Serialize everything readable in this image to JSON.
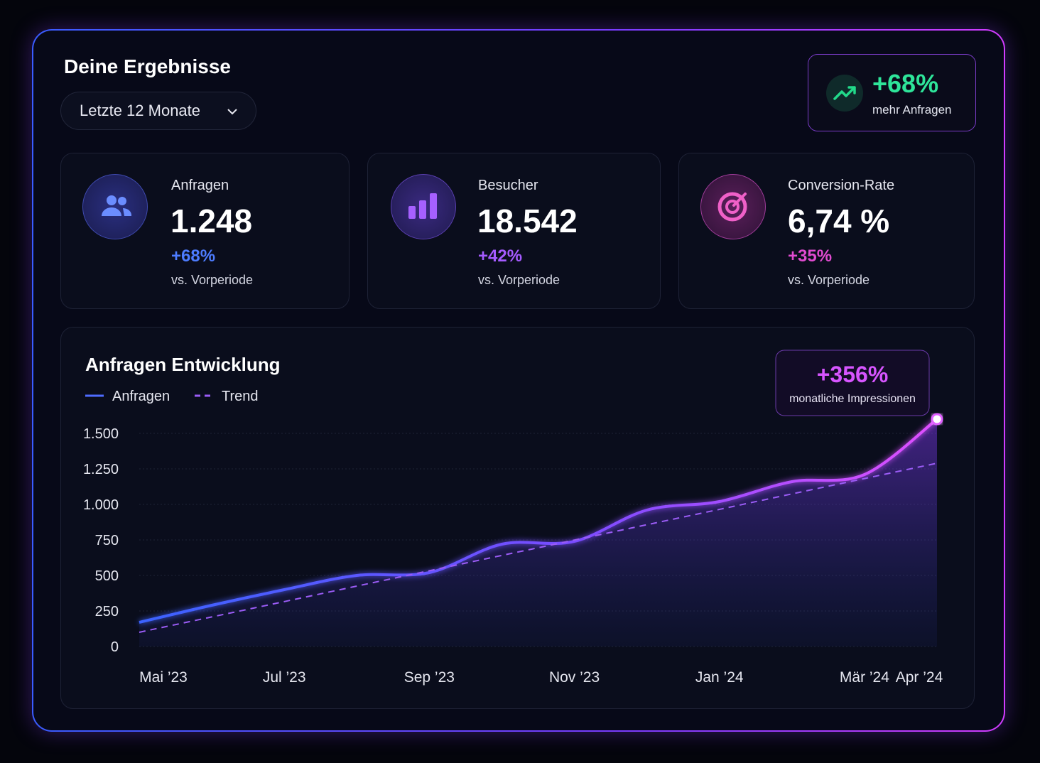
{
  "header": {
    "title": "Deine Ergebnisse",
    "period": "Letzte 12 Monate"
  },
  "highlight": {
    "value": "+68%",
    "label": "mehr Anfragen"
  },
  "kpis": [
    {
      "label": "Anfragen",
      "value": "1.248",
      "change": "+68%",
      "note": "vs. Vorperiode"
    },
    {
      "label": "Besucher",
      "value": "18.542",
      "change": "+42%",
      "note": "vs. Vorperiode"
    },
    {
      "label": "Conversion-Rate",
      "value": "6,74 %",
      "change": "+35%",
      "note": "vs. Vorperiode"
    }
  ],
  "chart_data": {
    "type": "line",
    "title": "Anfragen Entwicklung",
    "categories": [
      "Mai ’23",
      null,
      "Jul ’23",
      null,
      "Sep ’23",
      null,
      "Nov ’23",
      null,
      "Jan ’24",
      null,
      "Mär ’24",
      "Apr ’24"
    ],
    "series": [
      {
        "name": "Anfragen",
        "color": "#4f6cff",
        "values": [
          170,
          290,
          400,
          500,
          520,
          720,
          740,
          960,
          1020,
          1160,
          1210,
          1600
        ]
      },
      {
        "name": "Trend",
        "color": "#9b5cf6",
        "dashed": true,
        "values": [
          100,
          208,
          316,
          425,
          533,
          641,
          749,
          857,
          965,
          1074,
          1182,
          1290
        ]
      }
    ],
    "ylim": [
      0,
      1500
    ],
    "yticks": [
      0,
      250,
      500,
      750,
      {
        "value": 1000,
        "label": "1.000"
      },
      {
        "value": 1250,
        "label": "1.250"
      },
      {
        "value": 1500,
        "label": "1.500"
      }
    ],
    "grid": true,
    "annotation": {
      "value": "+356%",
      "label": "monatliche Impressionen"
    }
  }
}
